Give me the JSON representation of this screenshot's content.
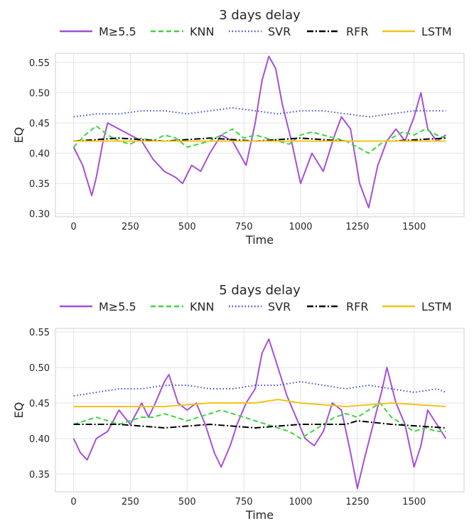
{
  "chart_data": [
    {
      "type": "line",
      "title": "3 days delay",
      "xlabel": "Time",
      "ylabel": "EQ",
      "xlim": [
        -80,
        1720
      ],
      "ylim": [
        0.295,
        0.565
      ],
      "xticks": [
        0,
        250,
        500,
        750,
        1000,
        1250,
        1500
      ],
      "yticks": [
        0.3,
        0.35,
        0.4,
        0.45,
        0.5,
        0.55
      ],
      "grid": true,
      "legend": "top",
      "series": [
        {
          "name": "M≥5.5",
          "color": "#a64fd6",
          "style": "solid",
          "x": [
            0,
            40,
            80,
            100,
            130,
            150,
            200,
            250,
            300,
            350,
            400,
            450,
            480,
            520,
            560,
            600,
            650,
            700,
            760,
            800,
            830,
            860,
            890,
            920,
            960,
            1000,
            1050,
            1100,
            1150,
            1180,
            1220,
            1260,
            1300,
            1340,
            1380,
            1420,
            1460,
            1500,
            1530,
            1560,
            1600,
            1640
          ],
          "values": [
            0.41,
            0.38,
            0.33,
            0.36,
            0.42,
            0.45,
            0.44,
            0.43,
            0.42,
            0.39,
            0.37,
            0.36,
            0.35,
            0.38,
            0.37,
            0.4,
            0.43,
            0.42,
            0.38,
            0.45,
            0.52,
            0.56,
            0.54,
            0.48,
            0.42,
            0.35,
            0.4,
            0.37,
            0.43,
            0.46,
            0.44,
            0.35,
            0.31,
            0.38,
            0.42,
            0.44,
            0.42,
            0.46,
            0.5,
            0.44,
            0.42,
            0.43
          ]
        },
        {
          "name": "KNN",
          "color": "#3fd63f",
          "style": "dashed",
          "x": [
            0,
            50,
            100,
            150,
            200,
            250,
            300,
            350,
            400,
            450,
            500,
            550,
            600,
            650,
            700,
            750,
            800,
            850,
            900,
            950,
            1000,
            1050,
            1100,
            1150,
            1200,
            1250,
            1300,
            1350,
            1400,
            1450,
            1500,
            1550,
            1600,
            1640
          ],
          "values": [
            0.41,
            0.43,
            0.445,
            0.43,
            0.42,
            0.415,
            0.425,
            0.42,
            0.43,
            0.425,
            0.41,
            0.415,
            0.42,
            0.43,
            0.44,
            0.425,
            0.43,
            0.425,
            0.42,
            0.415,
            0.43,
            0.435,
            0.43,
            0.425,
            0.42,
            0.41,
            0.4,
            0.415,
            0.425,
            0.435,
            0.43,
            0.44,
            0.43,
            0.425
          ]
        },
        {
          "name": "SVR",
          "color": "#3f4fd6",
          "style": "dotted",
          "x": [
            0,
            100,
            200,
            300,
            400,
            500,
            600,
            700,
            800,
            900,
            1000,
            1100,
            1200,
            1300,
            1400,
            1500,
            1600,
            1640
          ],
          "values": [
            0.46,
            0.465,
            0.465,
            0.47,
            0.47,
            0.465,
            0.47,
            0.475,
            0.47,
            0.465,
            0.47,
            0.47,
            0.465,
            0.46,
            0.465,
            0.47,
            0.47,
            0.47
          ]
        },
        {
          "name": "RFR",
          "color": "#000000",
          "style": "dashdot",
          "x": [
            0,
            200,
            400,
            600,
            800,
            1000,
            1200,
            1400,
            1640
          ],
          "values": [
            0.42,
            0.425,
            0.42,
            0.425,
            0.42,
            0.425,
            0.42,
            0.42,
            0.425
          ]
        },
        {
          "name": "LSTM",
          "color": "#f0c419",
          "style": "solid",
          "x": [
            0,
            400,
            800,
            1200,
            1640
          ],
          "values": [
            0.42,
            0.42,
            0.42,
            0.42,
            0.42
          ]
        }
      ]
    },
    {
      "type": "line",
      "title": "5 days delay",
      "xlabel": "Time",
      "ylabel": "EQ",
      "xlim": [
        -80,
        1720
      ],
      "ylim": [
        0.325,
        0.555
      ],
      "xticks": [
        0,
        250,
        500,
        750,
        1000,
        1250,
        1500
      ],
      "yticks": [
        0.35,
        0.4,
        0.45,
        0.5,
        0.55
      ],
      "grid": true,
      "legend": "top",
      "series": [
        {
          "name": "M≥5.5",
          "color": "#a64fd6",
          "style": "solid",
          "x": [
            0,
            30,
            60,
            100,
            150,
            200,
            250,
            300,
            330,
            360,
            400,
            420,
            460,
            500,
            540,
            580,
            620,
            650,
            690,
            720,
            760,
            800,
            830,
            860,
            900,
            940,
            980,
            1020,
            1060,
            1100,
            1140,
            1180,
            1220,
            1250,
            1280,
            1320,
            1360,
            1380,
            1420,
            1460,
            1500,
            1530,
            1560,
            1600,
            1640
          ],
          "values": [
            0.4,
            0.38,
            0.37,
            0.4,
            0.41,
            0.44,
            0.42,
            0.45,
            0.43,
            0.45,
            0.48,
            0.49,
            0.45,
            0.44,
            0.45,
            0.42,
            0.38,
            0.36,
            0.39,
            0.42,
            0.45,
            0.47,
            0.52,
            0.54,
            0.5,
            0.46,
            0.43,
            0.4,
            0.39,
            0.41,
            0.45,
            0.44,
            0.38,
            0.33,
            0.37,
            0.42,
            0.47,
            0.5,
            0.45,
            0.42,
            0.36,
            0.39,
            0.44,
            0.42,
            0.4
          ]
        },
        {
          "name": "KNN",
          "color": "#3fd63f",
          "style": "dashed",
          "x": [
            0,
            50,
            100,
            150,
            200,
            250,
            300,
            350,
            400,
            450,
            500,
            550,
            600,
            650,
            700,
            750,
            800,
            850,
            900,
            950,
            1000,
            1050,
            1100,
            1150,
            1200,
            1250,
            1300,
            1350,
            1400,
            1450,
            1500,
            1550,
            1600,
            1640
          ],
          "values": [
            0.42,
            0.425,
            0.43,
            0.425,
            0.42,
            0.425,
            0.43,
            0.43,
            0.435,
            0.43,
            0.425,
            0.43,
            0.435,
            0.44,
            0.435,
            0.43,
            0.425,
            0.42,
            0.415,
            0.41,
            0.4,
            0.41,
            0.42,
            0.43,
            0.435,
            0.43,
            0.44,
            0.45,
            0.43,
            0.42,
            0.41,
            0.415,
            0.41,
            0.41
          ]
        },
        {
          "name": "SVR",
          "color": "#3f4fd6",
          "style": "dotted",
          "x": [
            0,
            100,
            200,
            300,
            400,
            500,
            600,
            700,
            800,
            900,
            1000,
            1100,
            1200,
            1300,
            1400,
            1500,
            1600,
            1640
          ],
          "values": [
            0.46,
            0.465,
            0.47,
            0.47,
            0.475,
            0.475,
            0.47,
            0.47,
            0.475,
            0.475,
            0.48,
            0.475,
            0.47,
            0.475,
            0.47,
            0.465,
            0.47,
            0.465
          ]
        },
        {
          "name": "RFR",
          "color": "#000000",
          "style": "dashdot",
          "x": [
            0,
            200,
            400,
            600,
            800,
            1000,
            1200,
            1250,
            1400,
            1640
          ],
          "values": [
            0.42,
            0.42,
            0.415,
            0.42,
            0.415,
            0.42,
            0.42,
            0.425,
            0.42,
            0.415
          ]
        },
        {
          "name": "LSTM",
          "color": "#f0c419",
          "style": "solid",
          "x": [
            0,
            200,
            400,
            600,
            800,
            900,
            1000,
            1200,
            1400,
            1640
          ],
          "values": [
            0.445,
            0.445,
            0.445,
            0.45,
            0.45,
            0.455,
            0.45,
            0.445,
            0.45,
            0.445
          ]
        }
      ]
    }
  ]
}
